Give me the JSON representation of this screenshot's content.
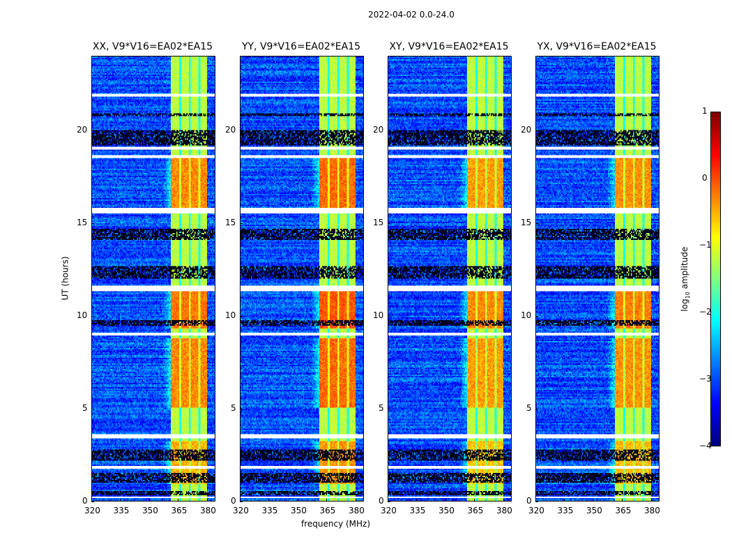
{
  "chart_data": {
    "type": "heatmap",
    "suptitle": "2022-04-02 0.0-24.0",
    "xlabel": "frequency (MHz)",
    "ylabel": "UT (hours)",
    "xlim": [
      320,
      384
    ],
    "ylim": [
      0,
      24
    ],
    "xticks": [
      "320",
      "335",
      "350",
      "365",
      "380"
    ],
    "yticks": [
      "0",
      "5",
      "10",
      "15",
      "20"
    ],
    "panels": [
      {
        "title": "XX, V9*V16=EA02*EA15",
        "bright_offset": 0.0
      },
      {
        "title": "YY, V9*V16=EA02*EA15",
        "bright_offset": 0.15
      },
      {
        "title": "XY, V9*V16=EA02*EA15",
        "bright_offset": -0.1
      },
      {
        "title": "YX, V9*V16=EA02*EA15",
        "bright_offset": -0.05
      }
    ],
    "background_log_amp": -3.0,
    "rfi_band_mhz": [
      361,
      380
    ],
    "rfi_band_log_amp": -1.2,
    "rfi_gap_channels_mhz": [
      366,
      371,
      376
    ],
    "bright_intervals_hours": [
      [
        15.8,
        18.5,
        -0.3
      ],
      [
        9.3,
        11.3,
        -0.2
      ],
      [
        5.0,
        8.8,
        -0.3
      ],
      [
        0.9,
        3.2,
        -0.5
      ]
    ],
    "flagged_hours_white": [
      [
        21.8,
        21.95
      ],
      [
        21.5,
        21.55
      ],
      [
        19.0,
        19.1
      ],
      [
        18.55,
        18.7
      ],
      [
        15.55,
        15.85
      ],
      [
        11.3,
        11.6
      ],
      [
        8.9,
        9.05
      ],
      [
        3.4,
        3.6
      ],
      [
        1.75,
        1.9
      ],
      [
        0.15,
        0.25
      ]
    ],
    "dark_rows_hours": [
      [
        20.8,
        20.9
      ],
      [
        19.2,
        20.0
      ],
      [
        14.1,
        14.7
      ],
      [
        12.0,
        12.7
      ],
      [
        9.45,
        9.75
      ],
      [
        2.2,
        2.8
      ],
      [
        1.0,
        1.5
      ],
      [
        0.3,
        0.5
      ]
    ],
    "colorbar": {
      "label": "log10 amplitude",
      "label_base": "log",
      "label_sub": "10",
      "label_rest": " amplitude",
      "range": [
        -4,
        1
      ],
      "ticks": [
        "1",
        "0",
        "−1",
        "−2",
        "−3",
        "−4"
      ],
      "colormap": "jet"
    }
  }
}
